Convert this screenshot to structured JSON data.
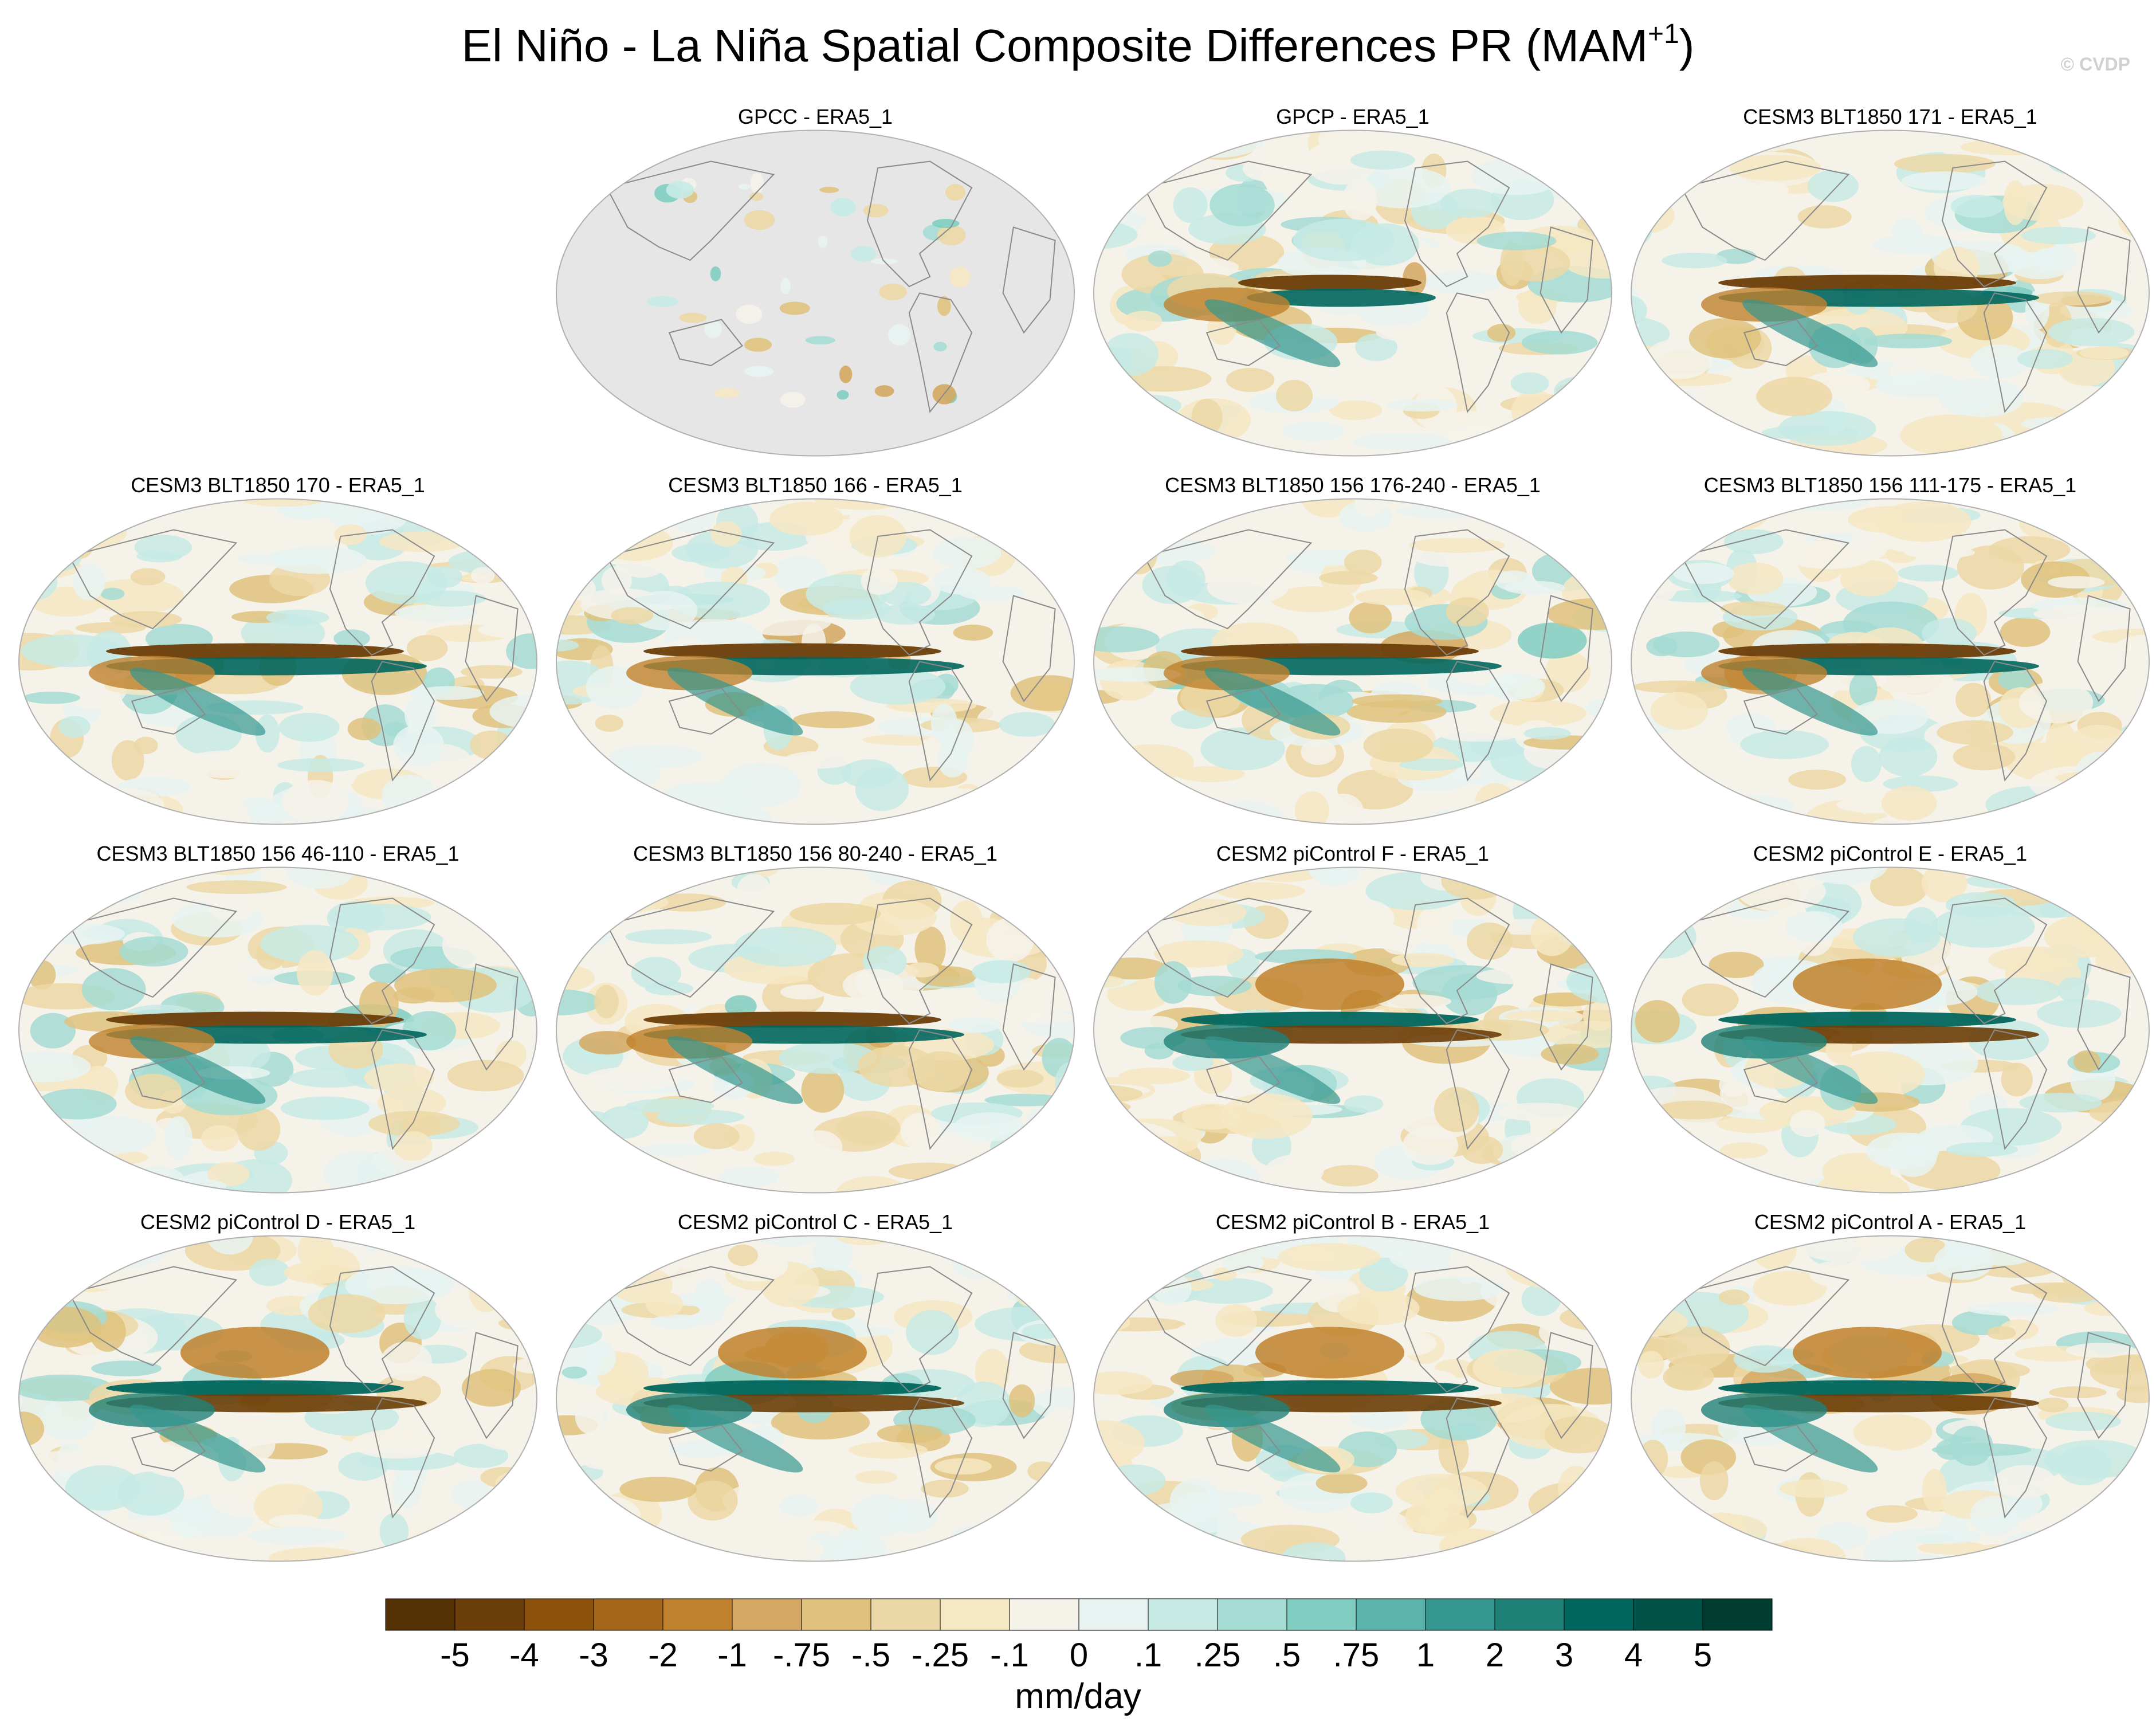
{
  "title": {
    "main": "El Niño - La Niña Spatial Composite Differences PR (MAM",
    "superscript": "+1",
    "close": ")"
  },
  "watermark": "© CVDP",
  "colors": {
    "ocean_land_mask": "#e6e6e6",
    "coastline": "#8a8a8a",
    "outline": "#b0b0b0"
  },
  "panels": [
    {
      "title": "GPCC - ERA5_1",
      "land_only": true
    },
    {
      "title": "GPCP - ERA5_1"
    },
    {
      "title": "CESM3 BLT1850 171 - ERA5_1"
    },
    {
      "title": "CESM3 BLT1850 170 - ERA5_1"
    },
    {
      "title": "CESM3 BLT1850 166 - ERA5_1"
    },
    {
      "title": "CESM3 BLT1850 156 176-240 - ERA5_1"
    },
    {
      "title": "CESM3 BLT1850 156 111-175 - ERA5_1"
    },
    {
      "title": "CESM3 BLT1850 156 46-110 - ERA5_1"
    },
    {
      "title": "CESM3 BLT1850 156 80-240 - ERA5_1"
    },
    {
      "title": "CESM2 piControl F - ERA5_1"
    },
    {
      "title": "CESM2 piControl E - ERA5_1"
    },
    {
      "title": "CESM2 piControl D - ERA5_1"
    },
    {
      "title": "CESM2 piControl C - ERA5_1"
    },
    {
      "title": "CESM2 piControl B - ERA5_1"
    },
    {
      "title": "CESM2 piControl A - ERA5_1"
    }
  ],
  "colorbar": {
    "units": "mm/day",
    "ticks": [
      "-5",
      "-4",
      "-3",
      "-2",
      "-1",
      "-.75",
      "-.5",
      "-.25",
      "-.1",
      "0",
      ".1",
      ".25",
      ".5",
      ".75",
      "1",
      "2",
      "3",
      "4",
      "5"
    ],
    "colors": [
      "#543005",
      "#6b3d08",
      "#8c510a",
      "#a6661a",
      "#bf812d",
      "#d4a862",
      "#dfc27d",
      "#ecd8a6",
      "#f6e8c3",
      "#f5f2ea",
      "#e8f3f1",
      "#c7eae5",
      "#a5dcd4",
      "#80cdc1",
      "#5ab4ab",
      "#35978f",
      "#1f8178",
      "#01665e",
      "#015347",
      "#003c30"
    ]
  }
}
